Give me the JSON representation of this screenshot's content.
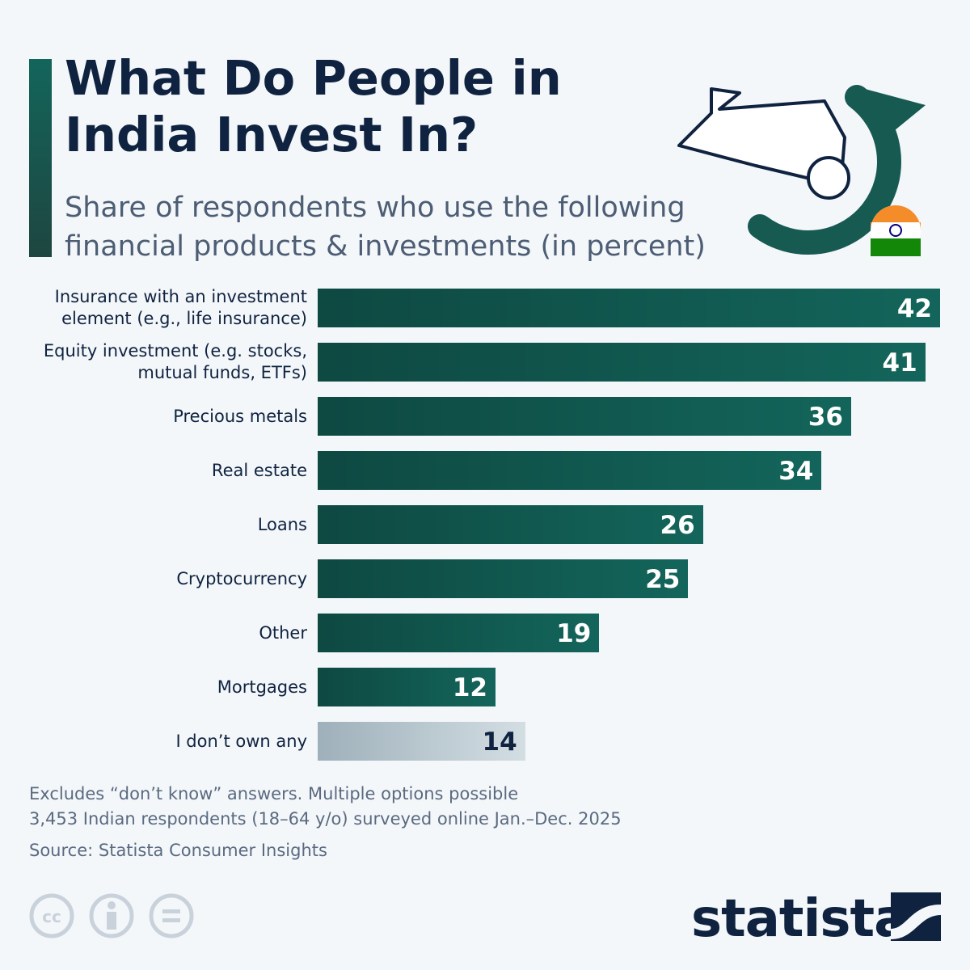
{
  "chart_data": {
    "type": "bar",
    "orientation": "horizontal",
    "title": "What Do People in India Invest In?",
    "subtitle": "Share of respondents who use the following financial products & investments (in percent)",
    "categories": [
      "Insurance with an investment element (e.g., life insurance)",
      "Equity investment (e.g. stocks, mutual funds, ETFs)",
      "Precious metals",
      "Real estate",
      "Loans",
      "Cryptocurrency",
      "Other",
      "Mortgages",
      "I don’t own any"
    ],
    "values": [
      42,
      41,
      36,
      34,
      26,
      25,
      19,
      12,
      14
    ],
    "colors": [
      "#13655b",
      "#13655b",
      "#13655b",
      "#13655b",
      "#13655b",
      "#13655b",
      "#13655b",
      "#13655b",
      "#d3dee3"
    ],
    "notes": [
      "Excludes “don’t know” answers. Multiple options possible",
      "3,453 Indian respondents (18–64 y/o) surveyed online Jan.–Dec. 2025"
    ],
    "source": "Source: Statista Consumer Insights",
    "brand": "statista"
  }
}
